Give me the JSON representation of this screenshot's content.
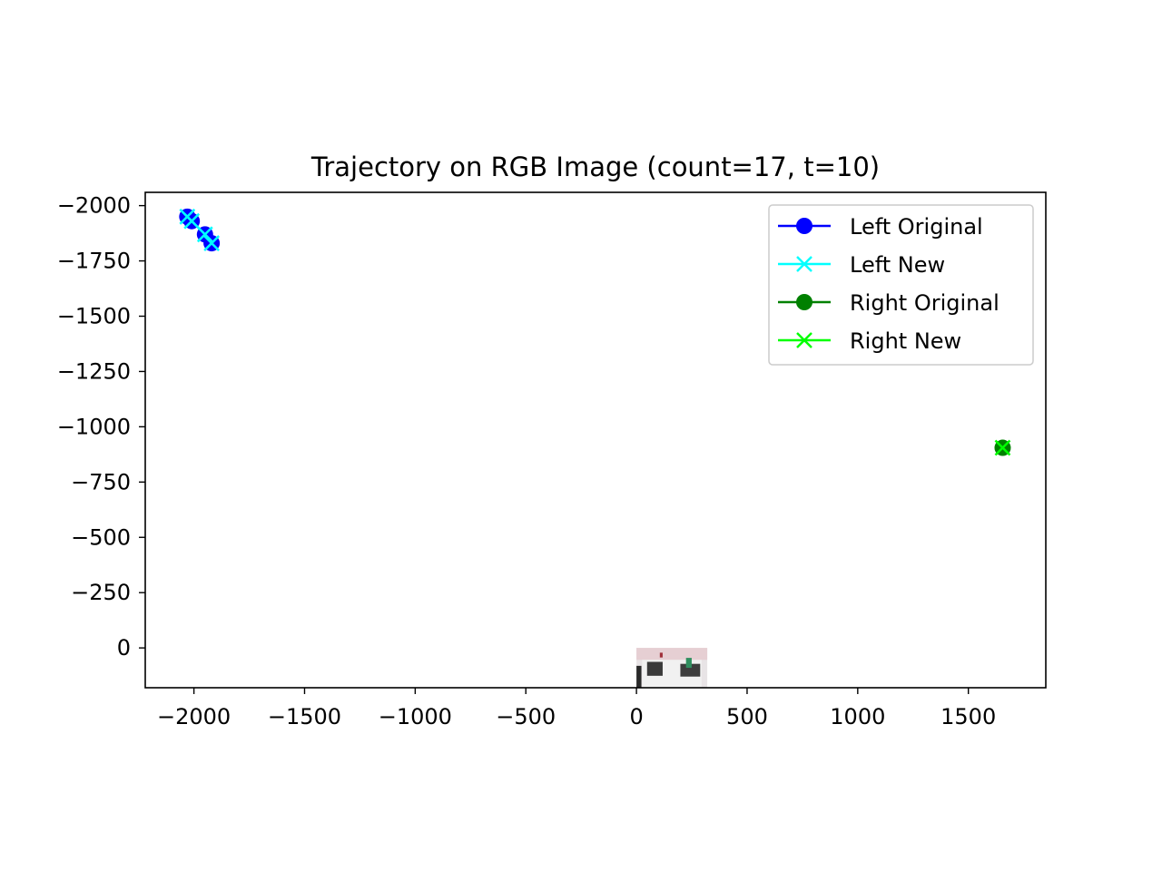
{
  "chart_data": {
    "type": "scatter",
    "title": "Trajectory on RGB Image (count=17, t=10)",
    "xlabel": "",
    "ylabel": "",
    "xlim": [
      -2220,
      1850
    ],
    "ylim": [
      -2060,
      180
    ],
    "y_inverted": true,
    "grid": false,
    "legend_position": "top-right",
    "x_ticks": [
      -2000,
      -1500,
      -1000,
      -500,
      0,
      500,
      1000,
      1500
    ],
    "x_tick_labels": [
      "−2000",
      "−1500",
      "−1000",
      "−500",
      "0",
      "500",
      "1000",
      "1500"
    ],
    "y_ticks": [
      -2000,
      -1750,
      -1500,
      -1250,
      -1000,
      -750,
      -500,
      -250,
      0
    ],
    "y_tick_labels": [
      "−2000",
      "−1750",
      "−1500",
      "−1250",
      "−1000",
      "−750",
      "−500",
      "−250",
      "0"
    ],
    "series": [
      {
        "name": "Left Original",
        "color": "#0000ff",
        "marker": "circle",
        "x": [
          -2030,
          -2010,
          -1950,
          -1920
        ],
        "y": [
          -1950,
          -1930,
          -1870,
          -1830
        ]
      },
      {
        "name": "Left New",
        "color": "#00ffff",
        "marker": "x",
        "x": [
          -2030,
          -2010,
          -1950,
          -1920
        ],
        "y": [
          -1950,
          -1930,
          -1870,
          -1830
        ]
      },
      {
        "name": "Right Original",
        "color": "#008000",
        "marker": "circle",
        "x": [
          1655
        ],
        "y": [
          -905
        ]
      },
      {
        "name": "Right New",
        "color": "#00ff00",
        "marker": "x",
        "x": [
          1655
        ],
        "y": [
          -905
        ]
      }
    ],
    "background_image": {
      "extent_x": [
        0,
        320
      ],
      "extent_y": [
        0,
        180
      ]
    }
  }
}
